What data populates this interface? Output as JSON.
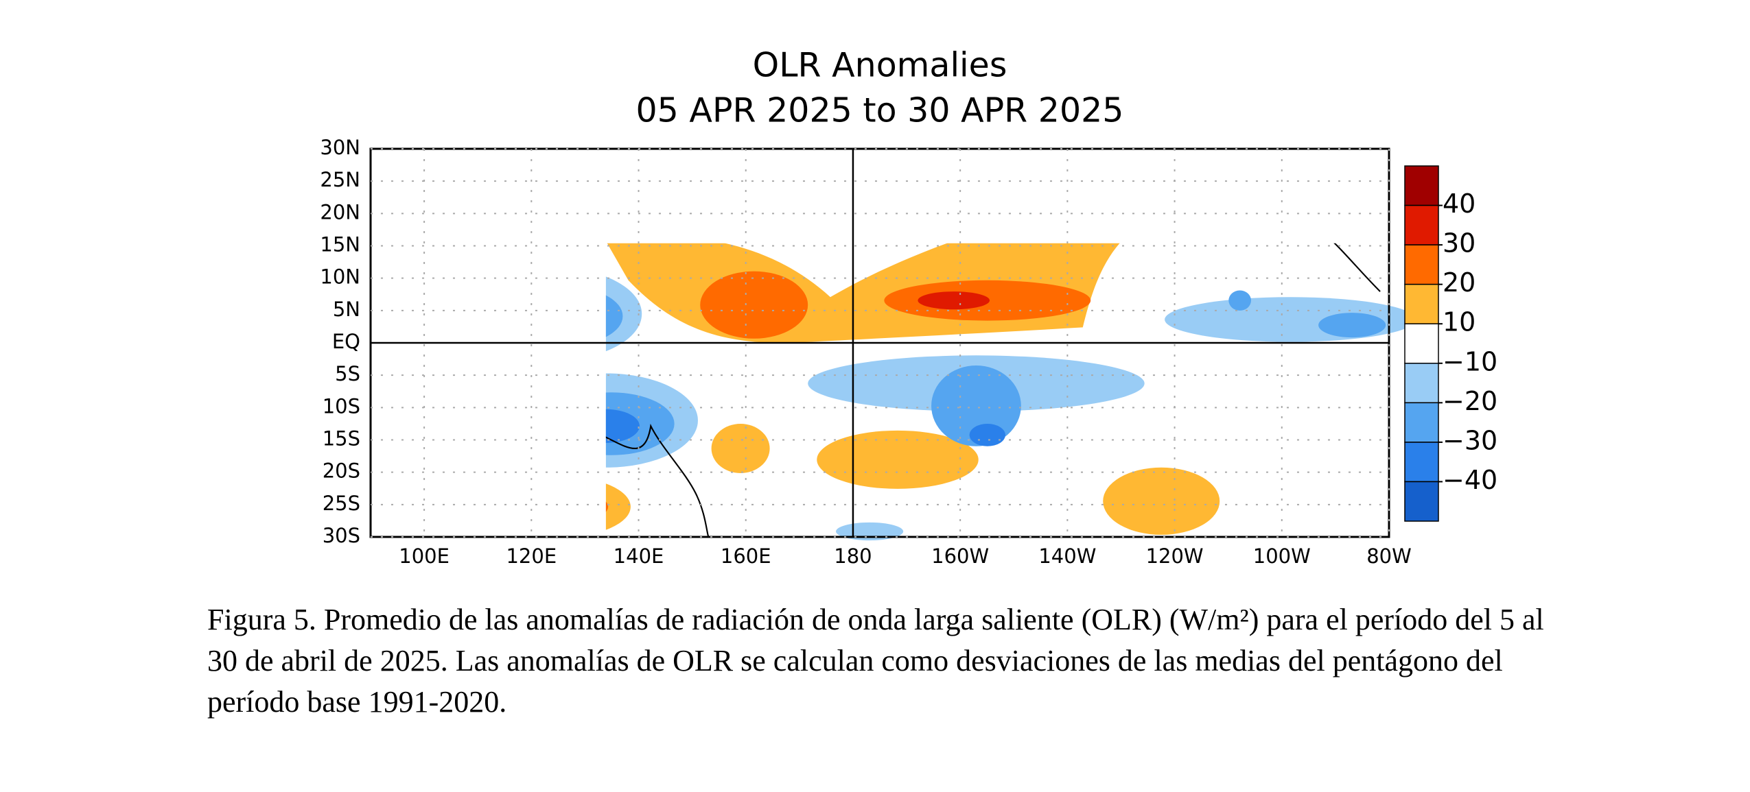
{
  "title": "OLR Anomalies",
  "subtitle": "05 APR 2025 to 30 APR 2025",
  "map": {
    "xlim": [
      90,
      280
    ],
    "ylim": [
      -30,
      30
    ],
    "xticks": [
      {
        "value": 100,
        "label": "100E"
      },
      {
        "value": 120,
        "label": "120E"
      },
      {
        "value": 140,
        "label": "140E"
      },
      {
        "value": 160,
        "label": "160E"
      },
      180,
      {
        "value": 200,
        "label": "160W"
      },
      {
        "value": 220,
        "label": "140W"
      },
      {
        "value": 240,
        "label": "120W"
      },
      {
        "value": 260,
        "label": "100W"
      },
      {
        "value": 280,
        "label": "80W"
      }
    ],
    "yticks": [
      {
        "value": 30,
        "label": "30N"
      },
      {
        "value": 25,
        "label": "25N"
      },
      {
        "value": 20,
        "label": "20N"
      },
      {
        "value": 15,
        "label": "15N"
      },
      {
        "value": 10,
        "label": "10N"
      },
      {
        "value": 5,
        "label": "5N"
      },
      {
        "value": 0,
        "label": "EQ"
      },
      {
        "value": -5,
        "label": "5S"
      },
      {
        "value": -10,
        "label": "10S"
      },
      {
        "value": -15,
        "label": "15S"
      },
      {
        "value": -20,
        "label": "20S"
      },
      {
        "value": -25,
        "label": "25S"
      },
      {
        "value": -30,
        "label": "30S"
      }
    ],
    "grid": true
  },
  "colorbar": {
    "ticks": [
      40,
      30,
      20,
      10,
      {
        "value": -10,
        "label": "−10"
      },
      {
        "value": -20,
        "label": "−20"
      },
      {
        "value": -30,
        "label": "−30"
      },
      {
        "value": -40,
        "label": "−40"
      }
    ],
    "colors": [
      "#a00000",
      "#e01a00",
      "#ff6a00",
      "#ffb833",
      "#ffffff",
      "#99ccf5",
      "#55a5f0",
      "#2a80ea",
      "#1560cc"
    ]
  },
  "caption": "Figura 5. Promedio de las anomalías de radiación de onda larga saliente (OLR) (W/m²) para el período del 5 al 30 de abril de 2025. Las anomalías de OLR se calculan como desviaciones de las medias del pentágono del período base 1991-2020."
}
